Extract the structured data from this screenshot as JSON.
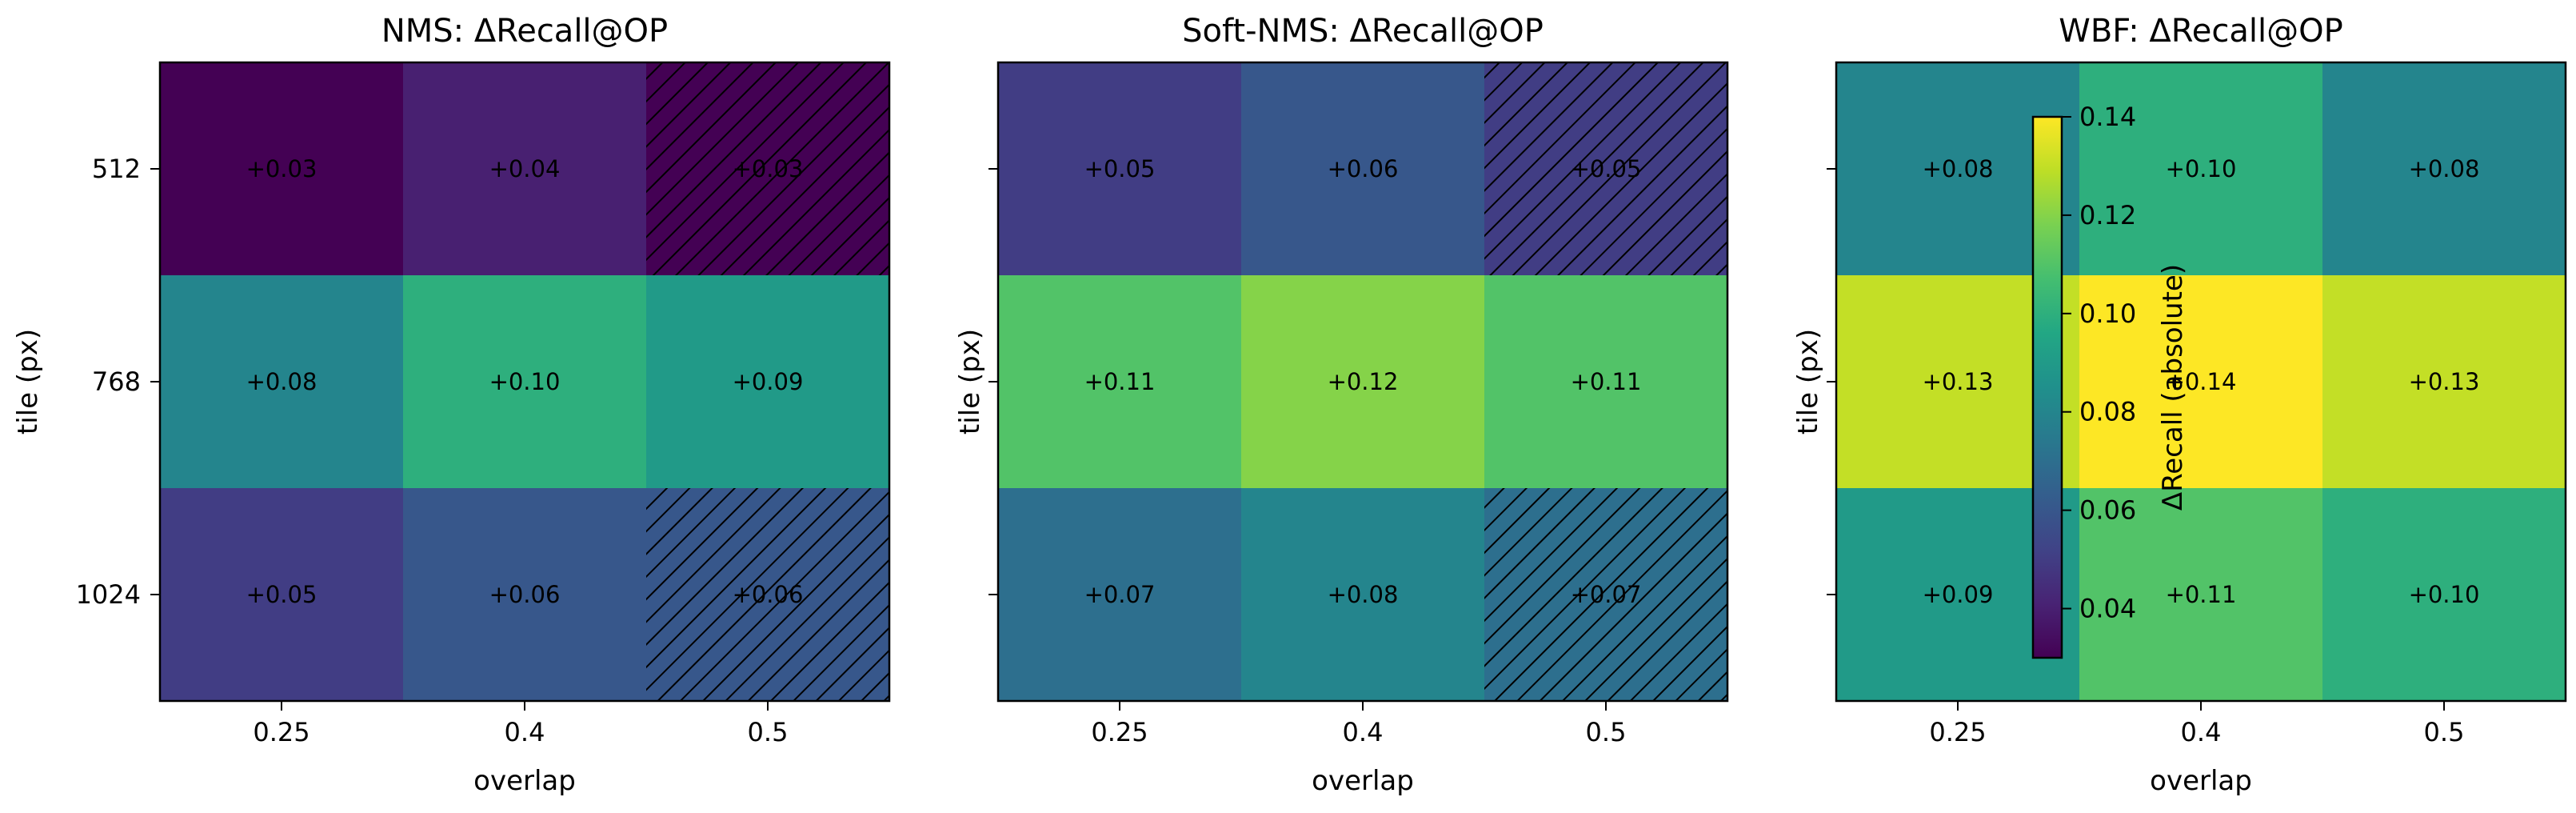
{
  "chart_data": [
    {
      "type": "heatmap",
      "title": "NMS: ΔRecall@OP",
      "xlabel": "overlap",
      "ylabel": "tile (px)",
      "x_categories": [
        "0.25",
        "0.4",
        "0.5"
      ],
      "y_categories": [
        "512",
        "768",
        "1024"
      ],
      "values": [
        [
          0.03,
          0.04,
          0.03
        ],
        [
          0.08,
          0.1,
          0.09
        ],
        [
          0.05,
          0.06,
          0.06
        ]
      ],
      "cell_labels": [
        [
          "+0.03",
          "+0.04",
          "+0.03"
        ],
        [
          "+0.08",
          "+0.10",
          "+0.09"
        ],
        [
          "+0.05",
          "+0.06",
          "+0.06"
        ]
      ],
      "hatched": [
        [
          false,
          false,
          true
        ],
        [
          false,
          false,
          false
        ],
        [
          false,
          false,
          true
        ]
      ]
    },
    {
      "type": "heatmap",
      "title": "Soft-NMS: ΔRecall@OP",
      "xlabel": "overlap",
      "ylabel": "tile (px)",
      "x_categories": [
        "0.25",
        "0.4",
        "0.5"
      ],
      "y_categories": [
        "512",
        "768",
        "1024"
      ],
      "values": [
        [
          0.05,
          0.06,
          0.05
        ],
        [
          0.11,
          0.12,
          0.11
        ],
        [
          0.07,
          0.08,
          0.07
        ]
      ],
      "cell_labels": [
        [
          "+0.05",
          "+0.06",
          "+0.05"
        ],
        [
          "+0.11",
          "+0.12",
          "+0.11"
        ],
        [
          "+0.07",
          "+0.08",
          "+0.07"
        ]
      ],
      "hatched": [
        [
          false,
          false,
          true
        ],
        [
          false,
          false,
          false
        ],
        [
          false,
          false,
          true
        ]
      ]
    },
    {
      "type": "heatmap",
      "title": "WBF: ΔRecall@OP",
      "xlabel": "overlap",
      "ylabel": "tile (px)",
      "x_categories": [
        "0.25",
        "0.4",
        "0.5"
      ],
      "y_categories": [
        "512",
        "768",
        "1024"
      ],
      "values": [
        [
          0.08,
          0.1,
          0.08
        ],
        [
          0.13,
          0.14,
          0.13
        ],
        [
          0.09,
          0.11,
          0.1
        ]
      ],
      "cell_labels": [
        [
          "+0.08",
          "+0.10",
          "+0.08"
        ],
        [
          "+0.13",
          "+0.14",
          "+0.13"
        ],
        [
          "+0.09",
          "+0.11",
          "+0.10"
        ]
      ],
      "hatched": [
        [
          false,
          false,
          false
        ],
        [
          false,
          false,
          false
        ],
        [
          false,
          false,
          false
        ]
      ]
    }
  ],
  "colorbar": {
    "label": "ΔRecall (absolute)",
    "colormap": "viridis",
    "range": [
      0.03,
      0.14
    ],
    "ticks": [
      0.04,
      0.06,
      0.08,
      0.1,
      0.12,
      0.14
    ],
    "tick_labels": [
      "0.04",
      "0.06",
      "0.08",
      "0.10",
      "0.12",
      "0.14"
    ]
  }
}
